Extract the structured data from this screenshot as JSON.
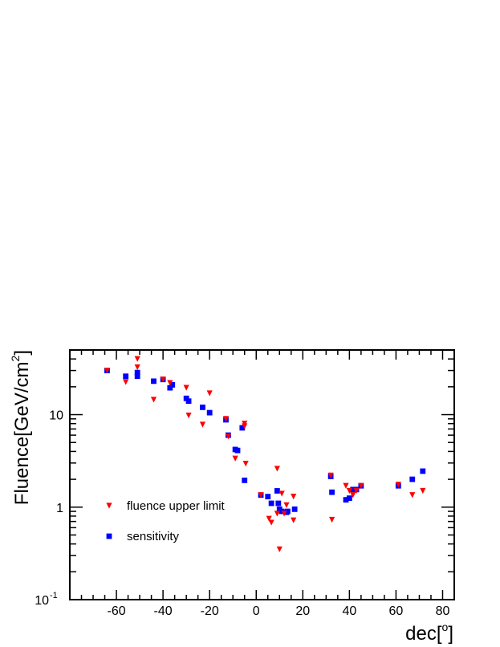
{
  "chart_data": {
    "type": "scatter",
    "title": "",
    "xlabel": {
      "base": "dec[",
      "sup": "o",
      "close": "]"
    },
    "ylabel": {
      "base": "Fluence[GeV/cm",
      "sup": "2",
      "close": "]"
    },
    "xlim": [
      -80,
      85
    ],
    "ylim": [
      0.1,
      50
    ],
    "yscale": "log",
    "grid": false,
    "legend_position": "bottom-left",
    "x_ticks": [
      {
        "value": -60,
        "label": "-60"
      },
      {
        "value": -40,
        "label": "-40"
      },
      {
        "value": -20,
        "label": "-20"
      },
      {
        "value": 0,
        "label": "0"
      },
      {
        "value": 20,
        "label": "20"
      },
      {
        "value": 40,
        "label": "40"
      },
      {
        "value": 60,
        "label": "60"
      },
      {
        "value": 80,
        "label": "80"
      }
    ],
    "y_ticks": [
      {
        "value": 0.1,
        "base": "10",
        "sup": "-1"
      },
      {
        "value": 1,
        "base": "1",
        "sup": ""
      },
      {
        "value": 10,
        "base": "10",
        "sup": ""
      }
    ],
    "series": [
      {
        "name": "fluence upper limit",
        "marker": "triangle-down",
        "color": "#ff0000",
        "points": [
          [
            -64,
            30
          ],
          [
            -56,
            22.5
          ],
          [
            -51,
            40
          ],
          [
            -51,
            32.5
          ],
          [
            -44,
            14.5
          ],
          [
            -40,
            24
          ],
          [
            -37,
            22
          ],
          [
            -30,
            19.5
          ],
          [
            -29,
            9.8
          ],
          [
            -23,
            7.8
          ],
          [
            -20,
            17
          ],
          [
            -13,
            9
          ],
          [
            -12,
            5.8
          ],
          [
            -9,
            3.35
          ],
          [
            -5,
            8
          ],
          [
            -5,
            7.5
          ],
          [
            -4.5,
            2.95
          ],
          [
            2,
            1.35
          ],
          [
            5.5,
            0.75
          ],
          [
            6.5,
            0.68
          ],
          [
            9,
            2.6
          ],
          [
            9,
            0.85
          ],
          [
            10,
            0.35
          ],
          [
            11,
            1.4
          ],
          [
            12,
            0.85
          ],
          [
            13,
            1.05
          ],
          [
            16,
            1.3
          ],
          [
            16,
            0.72
          ],
          [
            32,
            2.2
          ],
          [
            32.5,
            0.73
          ],
          [
            38.5,
            1.7
          ],
          [
            40,
            1.5
          ],
          [
            41.5,
            1.35
          ],
          [
            43,
            1.5
          ],
          [
            45,
            1.7
          ],
          [
            61,
            1.75
          ],
          [
            67,
            1.35
          ],
          [
            71.5,
            1.5
          ]
        ]
      },
      {
        "name": "sensitivity",
        "marker": "square",
        "color": "#0000ff",
        "points": [
          [
            -64,
            30
          ],
          [
            -56,
            26
          ],
          [
            -51,
            26
          ],
          [
            -51,
            28.5
          ],
          [
            -44,
            23
          ],
          [
            -40,
            24
          ],
          [
            -37,
            19.5
          ],
          [
            -36,
            21
          ],
          [
            -30,
            15
          ],
          [
            -29,
            14
          ],
          [
            -23,
            12
          ],
          [
            -20,
            10.5
          ],
          [
            -13,
            8.8
          ],
          [
            -12,
            6
          ],
          [
            -9,
            4.2
          ],
          [
            -8,
            4.1
          ],
          [
            -6,
            7.2
          ],
          [
            -5,
            1.95
          ],
          [
            2,
            1.35
          ],
          [
            5,
            1.3
          ],
          [
            6.5,
            1.1
          ],
          [
            9,
            1.5
          ],
          [
            9.5,
            1.1
          ],
          [
            10,
            0.95
          ],
          [
            11,
            0.9
          ],
          [
            13,
            0.88
          ],
          [
            13.5,
            0.9
          ],
          [
            16.5,
            0.95
          ],
          [
            32,
            2.15
          ],
          [
            32.5,
            1.45
          ],
          [
            38.5,
            1.2
          ],
          [
            40,
            1.25
          ],
          [
            41.5,
            1.55
          ],
          [
            43,
            1.55
          ],
          [
            45,
            1.7
          ],
          [
            61,
            1.7
          ],
          [
            67,
            2
          ],
          [
            71.5,
            2.45
          ]
        ]
      }
    ]
  }
}
